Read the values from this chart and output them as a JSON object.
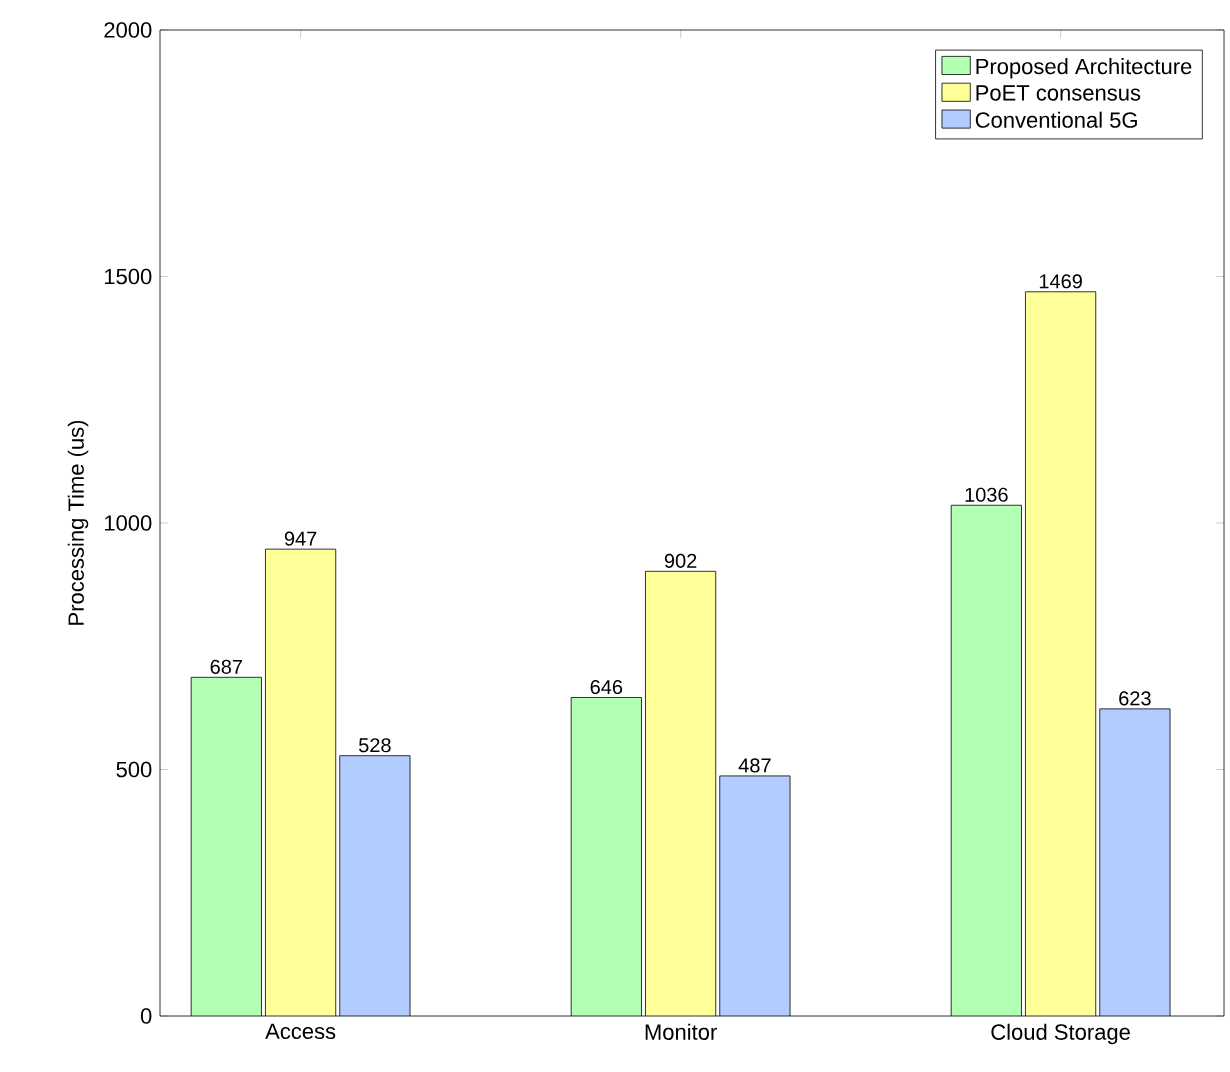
{
  "chart_data": {
    "type": "bar",
    "ylabel": "Processing Time (us)",
    "categories": [
      "Access",
      "Monitor",
      "Cloud Storage"
    ],
    "series": [
      {
        "name": "Proposed Architecture",
        "color": "#b3ffb3",
        "values": [
          687,
          646,
          1036
        ]
      },
      {
        "name": "PoET consensus",
        "color": "#ffff99",
        "values": [
          947,
          902,
          1469
        ]
      },
      {
        "name": "Conventional 5G",
        "color": "#b3ccff",
        "values": [
          528,
          487,
          623
        ]
      }
    ],
    "ylim": [
      0,
      2000
    ],
    "yticks": [
      0,
      500,
      1000,
      1500,
      2000
    ],
    "data_labels": true,
    "legend": "top right",
    "grid": false
  }
}
